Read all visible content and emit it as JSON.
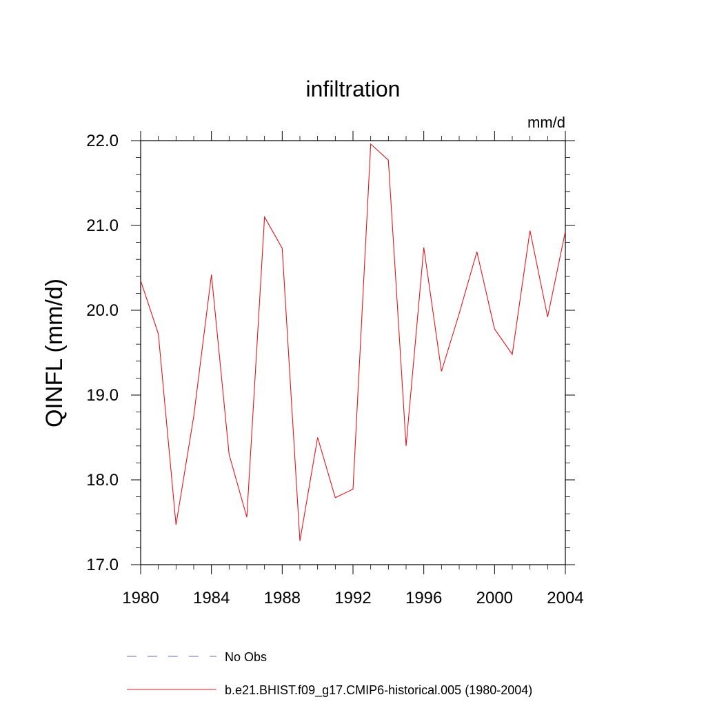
{
  "chart_data": {
    "type": "line",
    "title": "infiltration",
    "units_label": "mm/d",
    "ylabel": "QINFL  (mm/d)",
    "xlabel": "",
    "xlim": [
      1980,
      2004
    ],
    "ylim": [
      17.0,
      22.0
    ],
    "x_ticks": [
      1980,
      1984,
      1988,
      1992,
      1996,
      2000,
      2004
    ],
    "x_tick_labels": [
      "1980",
      "1984",
      "1988",
      "1992",
      "1996",
      "2000",
      "2004"
    ],
    "y_ticks": [
      17.0,
      18.0,
      19.0,
      20.0,
      21.0,
      22.0
    ],
    "y_tick_labels": [
      "17.0",
      "18.0",
      "19.0",
      "20.0",
      "21.0",
      "22.0"
    ],
    "grid": false,
    "legend_position": "bottom",
    "legend": [
      {
        "label": "No Obs",
        "color": "#6a6ac8",
        "dash": "dashed"
      },
      {
        "label": "b.e21.BHIST.f09_g17.CMIP6-historical.005 (1980-2004)",
        "color": "#e8141c",
        "dash": "solid"
      }
    ],
    "series": [
      {
        "name": "b.e21.BHIST.f09_g17.CMIP6-historical.005 (1980-2004)",
        "color": "#e8141c",
        "x": [
          1980,
          1981,
          1982,
          1983,
          1984,
          1985,
          1986,
          1987,
          1988,
          1989,
          1990,
          1991,
          1992,
          1993,
          1994,
          1995,
          1996,
          1997,
          1998,
          1999,
          2000,
          2001,
          2002,
          2003,
          2004
        ],
        "y": [
          20.35,
          19.72,
          17.47,
          18.75,
          20.42,
          18.3,
          17.56,
          21.1,
          20.73,
          17.28,
          18.5,
          17.79,
          17.89,
          21.96,
          21.77,
          18.4,
          20.74,
          19.28,
          19.96,
          20.69,
          19.78,
          19.48,
          20.94,
          19.92,
          20.93
        ]
      }
    ]
  }
}
